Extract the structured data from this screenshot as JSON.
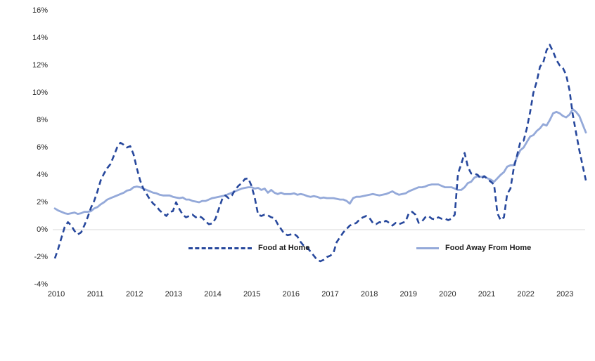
{
  "colors": {
    "background": "#FFFFFF",
    "gridline_zero": "#D9D9D9",
    "axis_text": "#262626",
    "food_at_home_line": "#26479C",
    "food_away_line": "#94A9D9"
  },
  "legend": {
    "food_at_home_label": "Food at Home",
    "food_away_label": "Food Away From Home"
  },
  "chart_data": {
    "type": "line",
    "title": "",
    "xlabel": "",
    "ylabel": "",
    "frequency": "monthly",
    "x_start": "2010-01",
    "x_end": "2023-07",
    "ylim": [
      -4,
      16
    ],
    "grid": "horizontal line at 0% only",
    "legend_position": "inside bottom, two entries",
    "y_ticks": [
      {
        "label": "16%",
        "value": 16
      },
      {
        "label": "14%",
        "value": 14
      },
      {
        "label": "12%",
        "value": 12
      },
      {
        "label": "10%",
        "value": 10
      },
      {
        "label": "8%",
        "value": 8
      },
      {
        "label": "6%",
        "value": 6
      },
      {
        "label": "4%",
        "value": 4
      },
      {
        "label": "2%",
        "value": 2
      },
      {
        "label": "0%",
        "value": 0
      },
      {
        "label": "-2%",
        "value": -2
      },
      {
        "label": "-4%",
        "value": -4
      }
    ],
    "x_ticks": [
      "2010",
      "2011",
      "2012",
      "2013",
      "2014",
      "2015",
      "2016",
      "2017",
      "2018",
      "2019",
      "2020",
      "2021",
      "2022",
      "2023"
    ],
    "series": [
      {
        "name": "Food at Home",
        "style": "dashed",
        "color": "#26479C",
        "values": [
          -2.1,
          -1.4,
          -0.6,
          0.2,
          0.55,
          0.3,
          -0.1,
          -0.35,
          -0.2,
          0.3,
          0.9,
          1.6,
          2.1,
          2.8,
          3.6,
          4.1,
          4.5,
          4.8,
          5.4,
          6.0,
          6.35,
          6.2,
          6.0,
          6.1,
          5.5,
          4.5,
          3.6,
          3.0,
          2.6,
          2.2,
          1.9,
          1.7,
          1.4,
          1.2,
          1.0,
          1.3,
          1.35,
          2.0,
          1.5,
          1.1,
          0.9,
          1.0,
          1.1,
          0.9,
          1.0,
          0.85,
          0.6,
          0.4,
          0.45,
          0.8,
          1.5,
          2.2,
          2.5,
          2.3,
          2.5,
          2.9,
          3.2,
          3.4,
          3.7,
          3.75,
          3.2,
          2.3,
          1.1,
          1.0,
          1.1,
          1.05,
          0.9,
          0.85,
          0.4,
          0.05,
          -0.3,
          -0.4,
          -0.35,
          -0.3,
          -0.5,
          -0.9,
          -1.2,
          -1.3,
          -1.6,
          -1.9,
          -2.2,
          -2.3,
          -2.2,
          -2.0,
          -1.9,
          -1.7,
          -0.9,
          -0.55,
          -0.2,
          0.05,
          0.3,
          0.4,
          0.5,
          0.75,
          0.9,
          1.0,
          0.85,
          0.5,
          0.4,
          0.55,
          0.5,
          0.65,
          0.5,
          0.3,
          0.5,
          0.4,
          0.5,
          0.6,
          1.2,
          1.3,
          1.1,
          0.5,
          0.6,
          0.9,
          1.0,
          0.8,
          0.75,
          0.9,
          0.8,
          0.8,
          0.7,
          0.8,
          1.1,
          4.1,
          4.8,
          5.6,
          4.6,
          4.1,
          4.1,
          4.0,
          3.7,
          3.9,
          3.7,
          3.5,
          3.3,
          1.2,
          0.7,
          0.9,
          2.6,
          3.0,
          4.5,
          5.4,
          6.4,
          6.5,
          7.4,
          8.6,
          10.0,
          10.8,
          11.9,
          12.2,
          13.1,
          13.5,
          13.0,
          12.4,
          12.0,
          11.8,
          11.3,
          10.2,
          8.4,
          7.1,
          5.8,
          4.7,
          3.6
        ]
      },
      {
        "name": "Food Away From Home",
        "style": "solid",
        "color": "#94A9D9",
        "values": [
          1.55,
          1.4,
          1.3,
          1.2,
          1.15,
          1.2,
          1.25,
          1.15,
          1.2,
          1.3,
          1.3,
          1.35,
          1.55,
          1.65,
          1.85,
          2.0,
          2.2,
          2.3,
          2.4,
          2.5,
          2.6,
          2.7,
          2.85,
          2.9,
          3.1,
          3.15,
          3.1,
          3.0,
          2.9,
          2.8,
          2.7,
          2.65,
          2.55,
          2.5,
          2.5,
          2.5,
          2.4,
          2.35,
          2.3,
          2.35,
          2.2,
          2.2,
          2.1,
          2.05,
          2.0,
          2.1,
          2.1,
          2.2,
          2.3,
          2.35,
          2.4,
          2.45,
          2.5,
          2.6,
          2.7,
          2.8,
          2.9,
          3.0,
          3.05,
          3.1,
          3.1,
          3.0,
          3.05,
          2.9,
          3.0,
          2.7,
          2.9,
          2.7,
          2.6,
          2.7,
          2.6,
          2.6,
          2.6,
          2.65,
          2.55,
          2.6,
          2.55,
          2.45,
          2.4,
          2.45,
          2.4,
          2.3,
          2.35,
          2.3,
          2.3,
          2.3,
          2.25,
          2.2,
          2.2,
          2.1,
          1.9,
          2.3,
          2.4,
          2.4,
          2.45,
          2.5,
          2.55,
          2.6,
          2.55,
          2.5,
          2.55,
          2.6,
          2.7,
          2.8,
          2.65,
          2.55,
          2.6,
          2.65,
          2.8,
          2.9,
          3.0,
          3.1,
          3.1,
          3.15,
          3.25,
          3.3,
          3.3,
          3.3,
          3.2,
          3.1,
          3.1,
          3.1,
          3.0,
          2.9,
          2.9,
          3.1,
          3.4,
          3.5,
          3.8,
          3.9,
          3.85,
          3.9,
          3.75,
          3.65,
          3.5,
          3.75,
          4.0,
          4.2,
          4.6,
          4.7,
          4.7,
          5.3,
          5.8,
          6.0,
          6.4,
          6.8,
          6.9,
          7.2,
          7.4,
          7.7,
          7.6,
          8.0,
          8.5,
          8.6,
          8.5,
          8.3,
          8.2,
          8.4,
          8.8,
          8.6,
          8.3,
          7.7,
          7.1
        ]
      }
    ]
  }
}
